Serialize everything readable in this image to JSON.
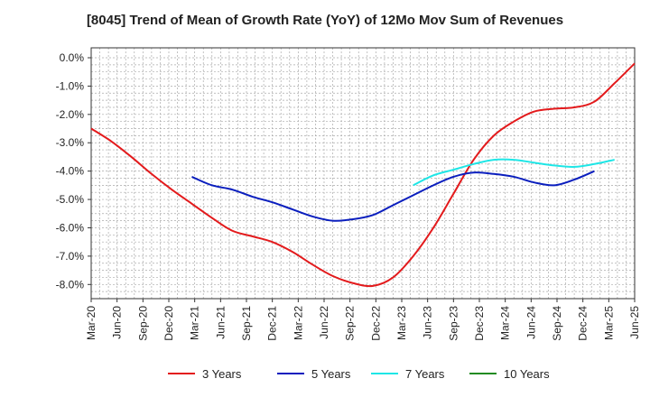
{
  "chart_data": {
    "type": "line",
    "title": "[8045]  Trend of Mean of Growth Rate (YoY) of 12Mo Mov Sum of Revenues",
    "xlabel": "",
    "ylabel": "",
    "ylim": [
      -8.5,
      0.35
    ],
    "y_ticks": [
      0,
      -1,
      -2,
      -3,
      -4,
      -5,
      -6,
      -7,
      -8
    ],
    "y_tick_labels": [
      "0.0%",
      "-1.0%",
      "-2.0%",
      "-3.0%",
      "-4.0%",
      "-5.0%",
      "-6.0%",
      "-7.0%",
      "-8.0%"
    ],
    "x_tick_labels": [
      "Mar-20",
      "Jun-20",
      "Sep-20",
      "Dec-20",
      "Mar-21",
      "Jun-21",
      "Sep-21",
      "Dec-21",
      "Mar-22",
      "Jun-22",
      "Sep-22",
      "Dec-22",
      "Mar-23",
      "Jun-23",
      "Sep-23",
      "Dec-23",
      "Mar-24",
      "Jun-24",
      "Sep-24",
      "Dec-24",
      "Mar-25",
      "Jun-25"
    ],
    "grid": true,
    "legend_position": "bottom",
    "series": [
      {
        "name": "3 Years",
        "color": "#e31a1c",
        "points": [
          [
            0,
            -2.5
          ],
          [
            1,
            -2.95
          ],
          [
            2,
            -3.5
          ],
          [
            3,
            -4.1
          ],
          [
            4,
            -4.65
          ],
          [
            5,
            -5.15
          ],
          [
            6,
            -5.65
          ],
          [
            7,
            -6.1
          ],
          [
            8,
            -6.3
          ],
          [
            9,
            -6.5
          ],
          [
            10,
            -6.85
          ],
          [
            11,
            -7.3
          ],
          [
            12,
            -7.7
          ],
          [
            13,
            -7.95
          ],
          [
            14,
            -8.05
          ],
          [
            15,
            -7.75
          ],
          [
            16,
            -7.0
          ],
          [
            17,
            -6.0
          ],
          [
            18,
            -4.8
          ],
          [
            19,
            -3.6
          ],
          [
            20,
            -2.75
          ],
          [
            21,
            -2.25
          ],
          [
            22,
            -1.9
          ],
          [
            23,
            -1.8
          ],
          [
            24,
            -1.75
          ],
          [
            25,
            -1.55
          ],
          [
            26,
            -0.9
          ],
          [
            27,
            -0.2
          ]
        ]
      },
      {
        "name": "5 Years",
        "color": "#0a1ebe",
        "points": [
          [
            5,
            -4.2
          ],
          [
            6,
            -4.5
          ],
          [
            7,
            -4.65
          ],
          [
            8,
            -4.9
          ],
          [
            9,
            -5.1
          ],
          [
            10,
            -5.35
          ],
          [
            11,
            -5.6
          ],
          [
            12,
            -5.75
          ],
          [
            13,
            -5.7
          ],
          [
            14,
            -5.55
          ],
          [
            15,
            -5.2
          ],
          [
            16,
            -4.85
          ],
          [
            17,
            -4.5
          ],
          [
            18,
            -4.2
          ],
          [
            19,
            -4.05
          ],
          [
            20,
            -4.1
          ],
          [
            21,
            -4.2
          ],
          [
            22,
            -4.4
          ],
          [
            23,
            -4.5
          ],
          [
            24,
            -4.3
          ],
          [
            25,
            -4.0
          ]
        ]
      },
      {
        "name": "7 Years",
        "color": "#1ee6e6",
        "points": [
          [
            16,
            -4.5
          ],
          [
            17,
            -4.15
          ],
          [
            18,
            -3.95
          ],
          [
            19,
            -3.75
          ],
          [
            20,
            -3.6
          ],
          [
            21,
            -3.6
          ],
          [
            22,
            -3.7
          ],
          [
            23,
            -3.8
          ],
          [
            24,
            -3.85
          ],
          [
            25,
            -3.75
          ],
          [
            26,
            -3.6
          ]
        ]
      },
      {
        "name": "10 Years",
        "color": "#228b22",
        "points": []
      }
    ]
  }
}
